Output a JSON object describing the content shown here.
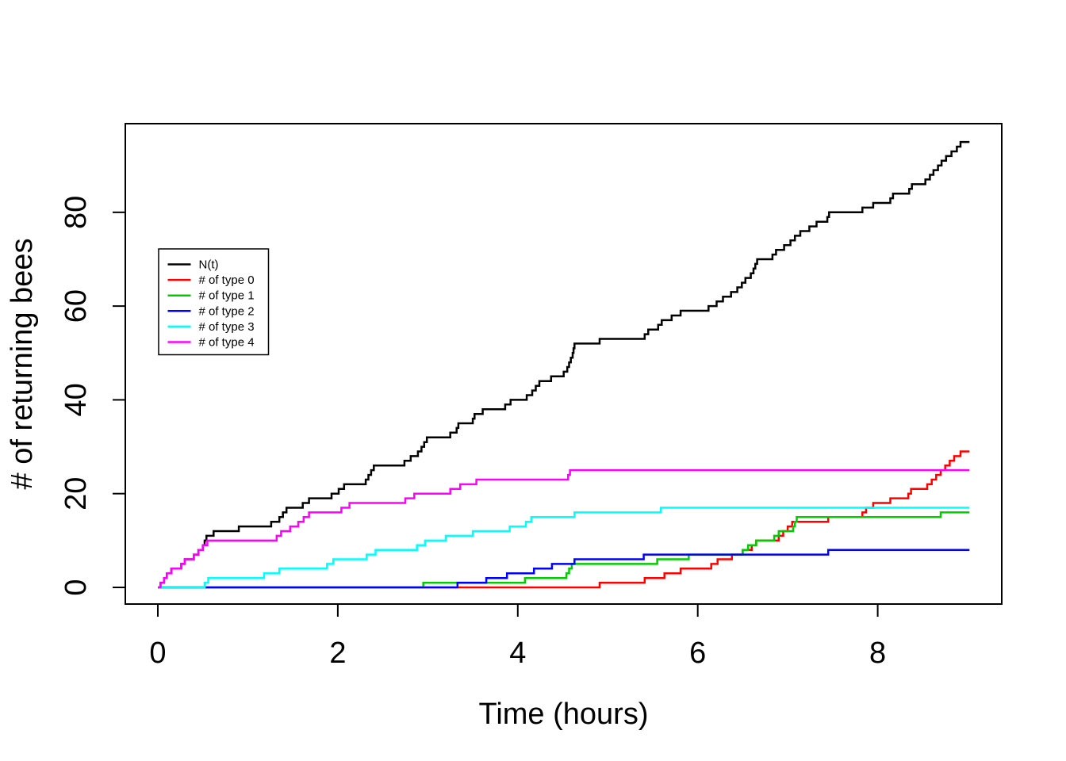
{
  "figure": {
    "background": "#FFFFFF",
    "xlabel": "Time (hours)",
    "ylabel": "# of returning bees",
    "x_tick_labels": [
      "0",
      "2",
      "4",
      "6",
      "8"
    ],
    "y_tick_labels": [
      "0",
      "20",
      "40",
      "60",
      "80"
    ]
  },
  "legend": {
    "entries": [
      {
        "label": "N(t)",
        "color": "#000000"
      },
      {
        "label": "# of type 0",
        "color": "#FF0000"
      },
      {
        "label": "# of type 1",
        "color": "#00CC00"
      },
      {
        "label": "# of type 2",
        "color": "#0000FF"
      },
      {
        "label": "# of type 3",
        "color": "#00FFFF"
      },
      {
        "label": "# of type 4",
        "color": "#FF00FF"
      }
    ]
  },
  "chart_data": {
    "type": "line",
    "subtype": "step-counting-process",
    "title": "",
    "xlabel": "Time (hours)",
    "ylabel": "# of returning bees",
    "xlim": [
      -0.36,
      9.38
    ],
    "ylim": [
      -3.6,
      98.9
    ],
    "x_ticks": [
      0,
      2,
      4,
      6,
      8
    ],
    "y_ticks": [
      0,
      20,
      40,
      60,
      80
    ],
    "grid": false,
    "legend_position": "upper-left-inside",
    "start_time": 0,
    "start_value": 0,
    "end_time": 9.02,
    "series": [
      {
        "name": "N(t)",
        "color": "#000000",
        "jumps": [
          [
            0.03,
            1
          ],
          [
            0.07,
            2
          ],
          [
            0.1,
            3
          ],
          [
            0.15,
            4
          ],
          [
            0.26,
            5
          ],
          [
            0.3,
            6
          ],
          [
            0.4,
            7
          ],
          [
            0.45,
            8
          ],
          [
            0.5,
            9
          ],
          [
            0.52,
            10
          ],
          [
            0.54,
            11
          ],
          [
            0.62,
            12
          ],
          [
            0.9,
            13
          ],
          [
            1.26,
            14
          ],
          [
            1.35,
            15
          ],
          [
            1.39,
            16
          ],
          [
            1.43,
            17
          ],
          [
            1.61,
            18
          ],
          [
            1.68,
            19
          ],
          [
            1.93,
            20
          ],
          [
            2.01,
            21
          ],
          [
            2.07,
            22
          ],
          [
            2.31,
            23
          ],
          [
            2.34,
            24
          ],
          [
            2.37,
            25
          ],
          [
            2.4,
            26
          ],
          [
            2.74,
            27
          ],
          [
            2.81,
            28
          ],
          [
            2.89,
            29
          ],
          [
            2.93,
            30
          ],
          [
            2.96,
            31
          ],
          [
            2.99,
            32
          ],
          [
            3.25,
            33
          ],
          [
            3.32,
            34
          ],
          [
            3.34,
            35
          ],
          [
            3.5,
            36
          ],
          [
            3.52,
            37
          ],
          [
            3.61,
            38
          ],
          [
            3.86,
            39
          ],
          [
            3.92,
            40
          ],
          [
            4.1,
            41
          ],
          [
            4.16,
            42
          ],
          [
            4.2,
            43
          ],
          [
            4.24,
            44
          ],
          [
            4.37,
            45
          ],
          [
            4.51,
            46
          ],
          [
            4.55,
            47
          ],
          [
            4.57,
            48
          ],
          [
            4.59,
            49
          ],
          [
            4.61,
            50
          ],
          [
            4.62,
            51
          ],
          [
            4.63,
            52
          ],
          [
            4.91,
            53
          ],
          [
            5.41,
            54
          ],
          [
            5.45,
            55
          ],
          [
            5.56,
            56
          ],
          [
            5.6,
            57
          ],
          [
            5.71,
            58
          ],
          [
            5.81,
            59
          ],
          [
            6.12,
            60
          ],
          [
            6.21,
            61
          ],
          [
            6.28,
            62
          ],
          [
            6.37,
            63
          ],
          [
            6.44,
            64
          ],
          [
            6.49,
            65
          ],
          [
            6.53,
            66
          ],
          [
            6.59,
            67
          ],
          [
            6.62,
            68
          ],
          [
            6.64,
            69
          ],
          [
            6.66,
            70
          ],
          [
            6.83,
            71
          ],
          [
            6.87,
            72
          ],
          [
            6.96,
            73
          ],
          [
            7.03,
            74
          ],
          [
            7.08,
            75
          ],
          [
            7.14,
            76
          ],
          [
            7.24,
            77
          ],
          [
            7.32,
            78
          ],
          [
            7.44,
            79
          ],
          [
            7.46,
            80
          ],
          [
            7.83,
            81
          ],
          [
            7.95,
            82
          ],
          [
            8.14,
            83
          ],
          [
            8.17,
            84
          ],
          [
            8.35,
            85
          ],
          [
            8.38,
            86
          ],
          [
            8.53,
            87
          ],
          [
            8.58,
            88
          ],
          [
            8.62,
            89
          ],
          [
            8.67,
            90
          ],
          [
            8.71,
            91
          ],
          [
            8.76,
            92
          ],
          [
            8.82,
            93
          ],
          [
            8.88,
            94
          ],
          [
            8.92,
            95
          ]
        ]
      },
      {
        "name": "# of type 0",
        "color": "#FF0000",
        "jumps": [
          [
            4.91,
            1
          ],
          [
            5.41,
            2
          ],
          [
            5.63,
            3
          ],
          [
            5.81,
            4
          ],
          [
            6.15,
            5
          ],
          [
            6.22,
            6
          ],
          [
            6.38,
            7
          ],
          [
            6.5,
            8
          ],
          [
            6.6,
            9
          ],
          [
            6.65,
            10
          ],
          [
            6.9,
            11
          ],
          [
            6.95,
            12
          ],
          [
            7.0,
            13
          ],
          [
            7.05,
            14
          ],
          [
            7.45,
            15
          ],
          [
            7.83,
            16
          ],
          [
            7.87,
            17
          ],
          [
            7.95,
            18
          ],
          [
            8.14,
            19
          ],
          [
            8.34,
            20
          ],
          [
            8.37,
            21
          ],
          [
            8.55,
            22
          ],
          [
            8.6,
            23
          ],
          [
            8.65,
            24
          ],
          [
            8.7,
            25
          ],
          [
            8.75,
            26
          ],
          [
            8.8,
            27
          ],
          [
            8.85,
            28
          ],
          [
            8.92,
            29
          ]
        ]
      },
      {
        "name": "# of type 1",
        "color": "#00CC00",
        "jumps": [
          [
            2.95,
            1
          ],
          [
            4.08,
            2
          ],
          [
            4.54,
            3
          ],
          [
            4.57,
            4
          ],
          [
            4.6,
            5
          ],
          [
            5.55,
            6
          ],
          [
            5.9,
            7
          ],
          [
            6.5,
            8
          ],
          [
            6.56,
            9
          ],
          [
            6.65,
            10
          ],
          [
            6.85,
            11
          ],
          [
            6.9,
            12
          ],
          [
            7.06,
            13
          ],
          [
            7.08,
            14
          ],
          [
            7.1,
            15
          ],
          [
            8.7,
            16
          ]
        ]
      },
      {
        "name": "# of type 2",
        "color": "#0000FF",
        "jumps": [
          [
            3.33,
            1
          ],
          [
            3.65,
            2
          ],
          [
            3.88,
            3
          ],
          [
            4.18,
            4
          ],
          [
            4.38,
            5
          ],
          [
            4.63,
            6
          ],
          [
            5.4,
            7
          ],
          [
            7.45,
            8
          ]
        ]
      },
      {
        "name": "# of type 3",
        "color": "#00FFFF",
        "jumps": [
          [
            0.52,
            1
          ],
          [
            0.56,
            2
          ],
          [
            1.18,
            3
          ],
          [
            1.35,
            4
          ],
          [
            1.88,
            5
          ],
          [
            1.95,
            6
          ],
          [
            2.32,
            7
          ],
          [
            2.42,
            8
          ],
          [
            2.88,
            9
          ],
          [
            2.97,
            10
          ],
          [
            3.2,
            11
          ],
          [
            3.5,
            12
          ],
          [
            3.91,
            13
          ],
          [
            4.09,
            14
          ],
          [
            4.15,
            15
          ],
          [
            4.63,
            16
          ],
          [
            5.59,
            17
          ]
        ]
      },
      {
        "name": "# of type 4",
        "color": "#FF00FF",
        "jumps": [
          [
            0.03,
            1
          ],
          [
            0.07,
            2
          ],
          [
            0.1,
            3
          ],
          [
            0.15,
            4
          ],
          [
            0.26,
            5
          ],
          [
            0.3,
            6
          ],
          [
            0.4,
            7
          ],
          [
            0.45,
            8
          ],
          [
            0.5,
            9
          ],
          [
            0.55,
            10
          ],
          [
            1.32,
            11
          ],
          [
            1.37,
            12
          ],
          [
            1.47,
            13
          ],
          [
            1.56,
            14
          ],
          [
            1.62,
            15
          ],
          [
            1.68,
            16
          ],
          [
            2.04,
            17
          ],
          [
            2.13,
            18
          ],
          [
            2.75,
            19
          ],
          [
            2.85,
            20
          ],
          [
            3.25,
            21
          ],
          [
            3.36,
            22
          ],
          [
            3.54,
            23
          ],
          [
            4.56,
            24
          ],
          [
            4.58,
            25
          ]
        ]
      }
    ]
  }
}
